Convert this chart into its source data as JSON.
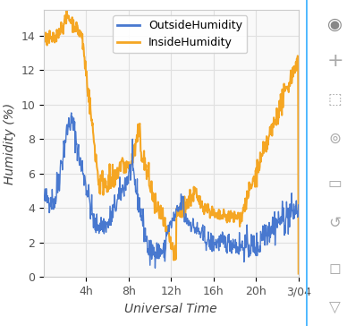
{
  "title": "",
  "xlabel": "Universal Time",
  "ylabel": "Humidity (%)",
  "outside_color": "#4878CF",
  "inside_color": "#F5A623",
  "bg_color": "#ffffff",
  "plot_bg_color": "#f9f9f9",
  "grid_color": "#e0e0e0",
  "xtick_labels": [
    "4h",
    "8h",
    "12h",
    "16h",
    "20h",
    "3/04"
  ],
  "ytick_values": [
    0,
    2,
    4,
    6,
    8,
    10,
    12,
    14
  ],
  "ylim": [
    0,
    15.5
  ],
  "xlim": [
    0,
    1
  ],
  "legend_labels": [
    "OutsideHumidity",
    "InsideHumidity"
  ]
}
